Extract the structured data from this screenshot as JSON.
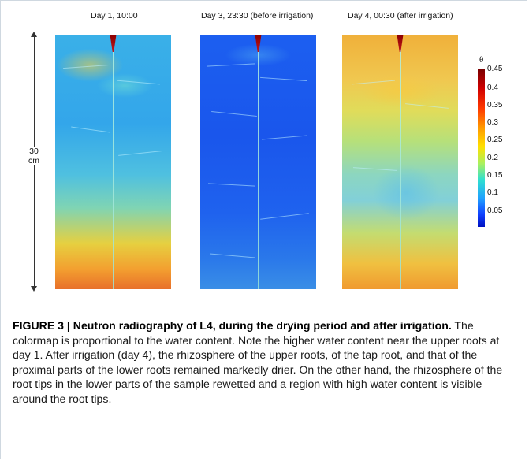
{
  "panels": [
    {
      "title": "Day 1, 10:00"
    },
    {
      "title": "Day 3, 23:30 (before irrigation)"
    },
    {
      "title": "Day 4, 00:30 (after irrigation)"
    }
  ],
  "scale": {
    "value": "30",
    "unit": "cm"
  },
  "colorbar": {
    "symbol": "θ",
    "ticks": [
      "0.45",
      "0.4",
      "0.35",
      "0.3",
      "0.25",
      "0.2",
      "0.15",
      "0.1",
      "0.05"
    ]
  },
  "caption": {
    "label": "FIGURE 3 | Neutron radiography of L4, during the drying period and after irrigation.",
    "text": " The colormap is proportional to the water content. Note the higher water content near the upper roots at day 1. After irrigation (day 4), the rhizosphere of the upper roots, of the tap root, and that of the proximal parts of the lower roots remained markedly drier. On the other hand, the rhizosphere of the root tips in the lower parts of the sample rewetted and a region with high water content is visible around the root tips."
  }
}
